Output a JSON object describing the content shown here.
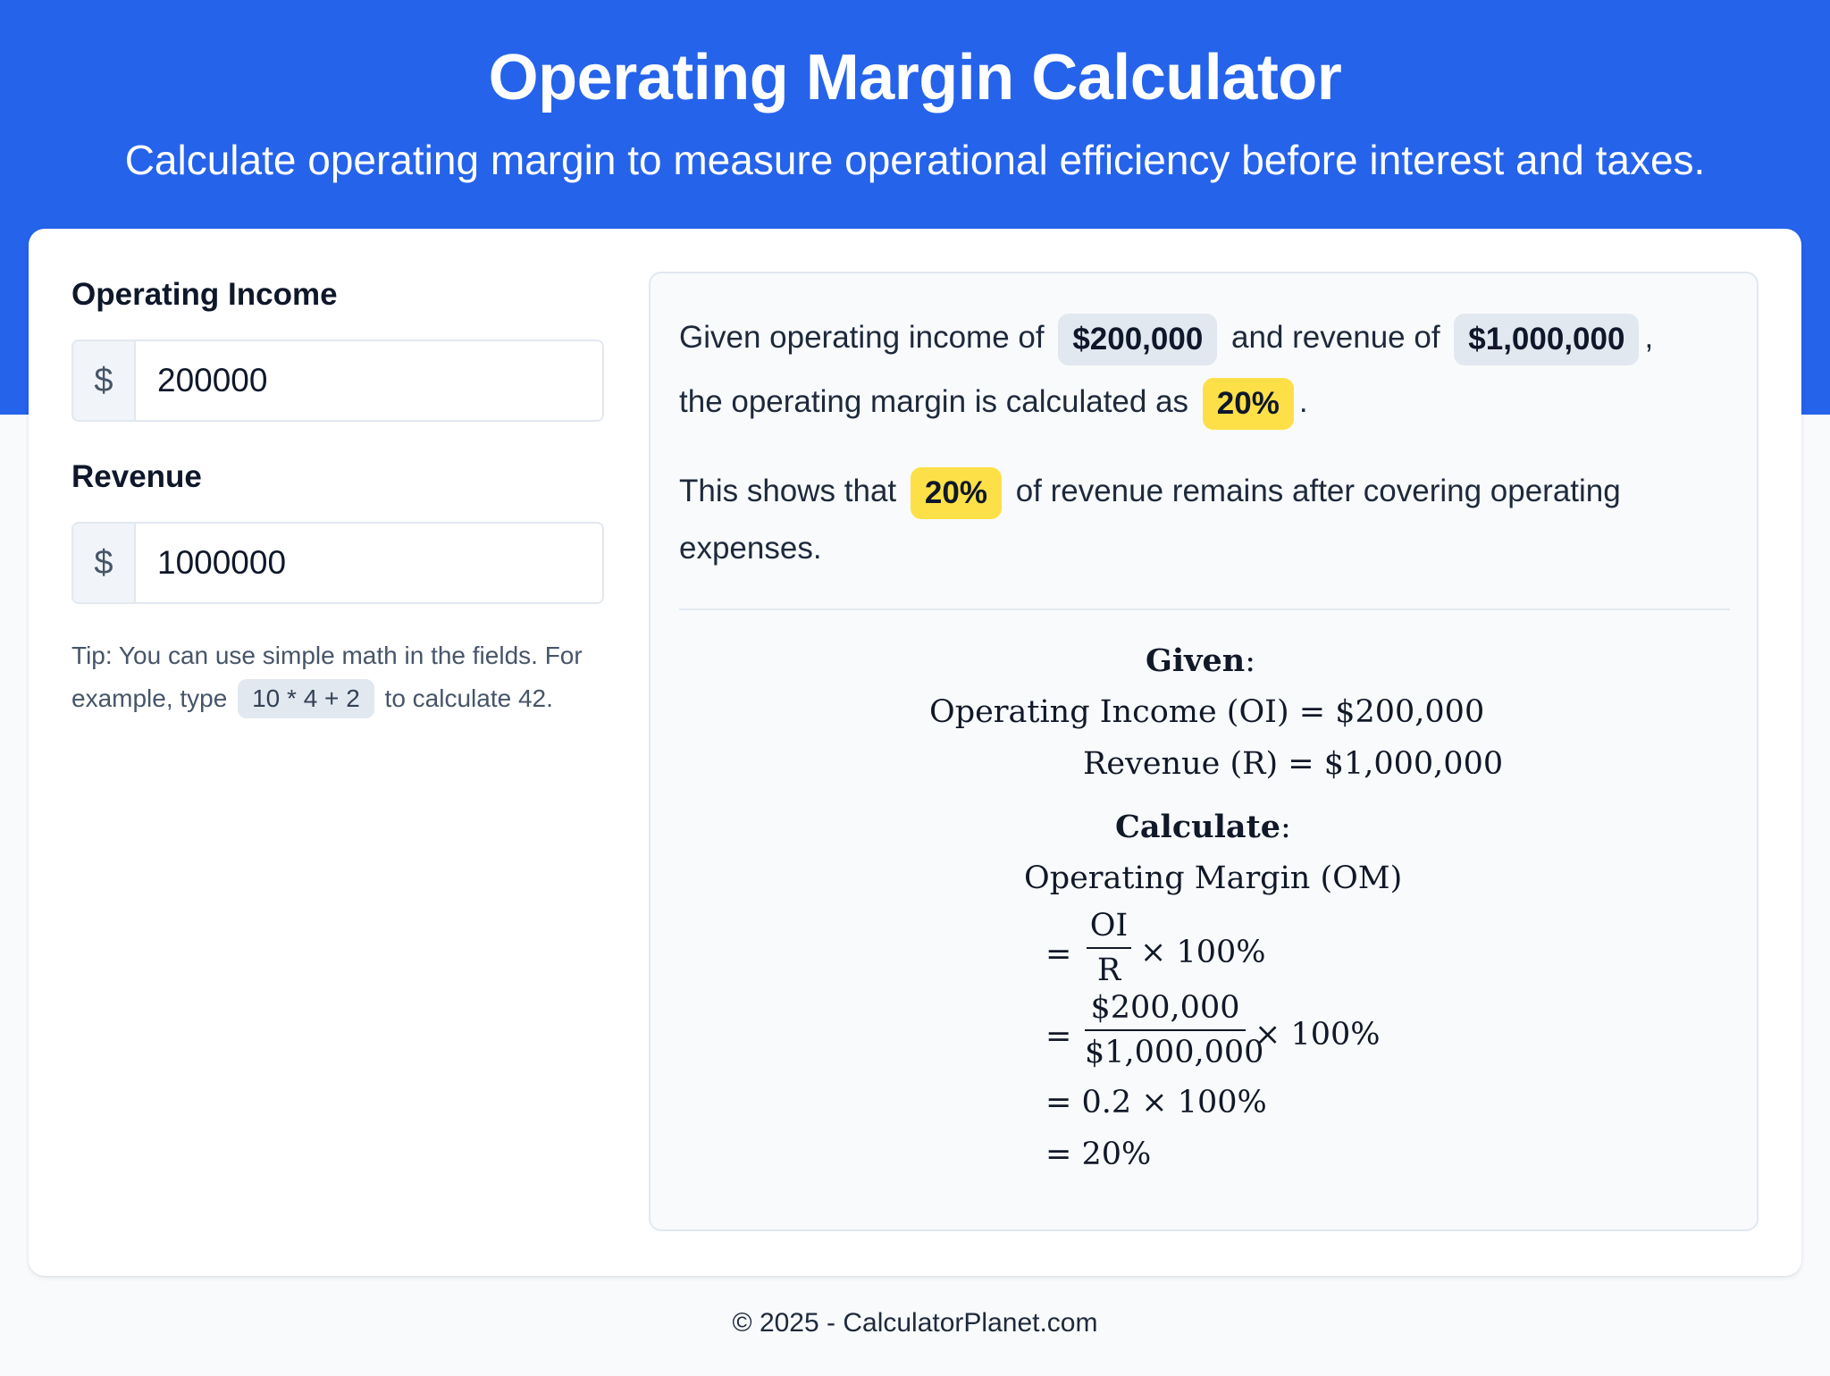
{
  "header": {
    "title": "Operating Margin Calculator",
    "subtitle": "Calculate operating margin to measure operational efficiency before interest and taxes."
  },
  "form": {
    "operating_income": {
      "label": "Operating Income",
      "prefix": "$",
      "value": "200000"
    },
    "revenue": {
      "label": "Revenue",
      "prefix": "$",
      "value": "1000000"
    },
    "tip": {
      "before": "Tip: You can use simple math in the fields. For example, type",
      "code": "10 * 4 + 2",
      "after": "to calculate 42."
    }
  },
  "result": {
    "sentence1": {
      "part1": "Given operating income of",
      "income": "$200,000",
      "part2": "and revenue of",
      "revenue": "$1,000,000",
      "part3": ",",
      "part4": "the operating margin is calculated as",
      "margin": "20%",
      "part5": "."
    },
    "sentence2": {
      "part1": "This shows that",
      "margin": "20%",
      "part2": "of revenue remains after covering operating expenses."
    },
    "math": {
      "given_heading": "Given",
      "colon": ":",
      "oi_line": "Operating Income (OI) = $200,000",
      "r_line": "Revenue (R) = $1,000,000",
      "calculate_heading": "Calculate",
      "om_line": "Operating Margin (OM)",
      "step1": {
        "eq": "=",
        "num": "OI",
        "den": "R",
        "tail": "× 100%"
      },
      "step2": {
        "eq": "=",
        "num": "$200,000",
        "den": "$1,000,000",
        "tail": "× 100%"
      },
      "step3": "= 0.2 × 100%",
      "step4": "= 20%"
    }
  },
  "colors": {
    "brand_blue": "#2563eb",
    "highlight_yellow": "#fde047",
    "pill_gray": "#e2e8f0"
  },
  "footer": {
    "text": "© 2025 - CalculatorPlanet.com"
  }
}
